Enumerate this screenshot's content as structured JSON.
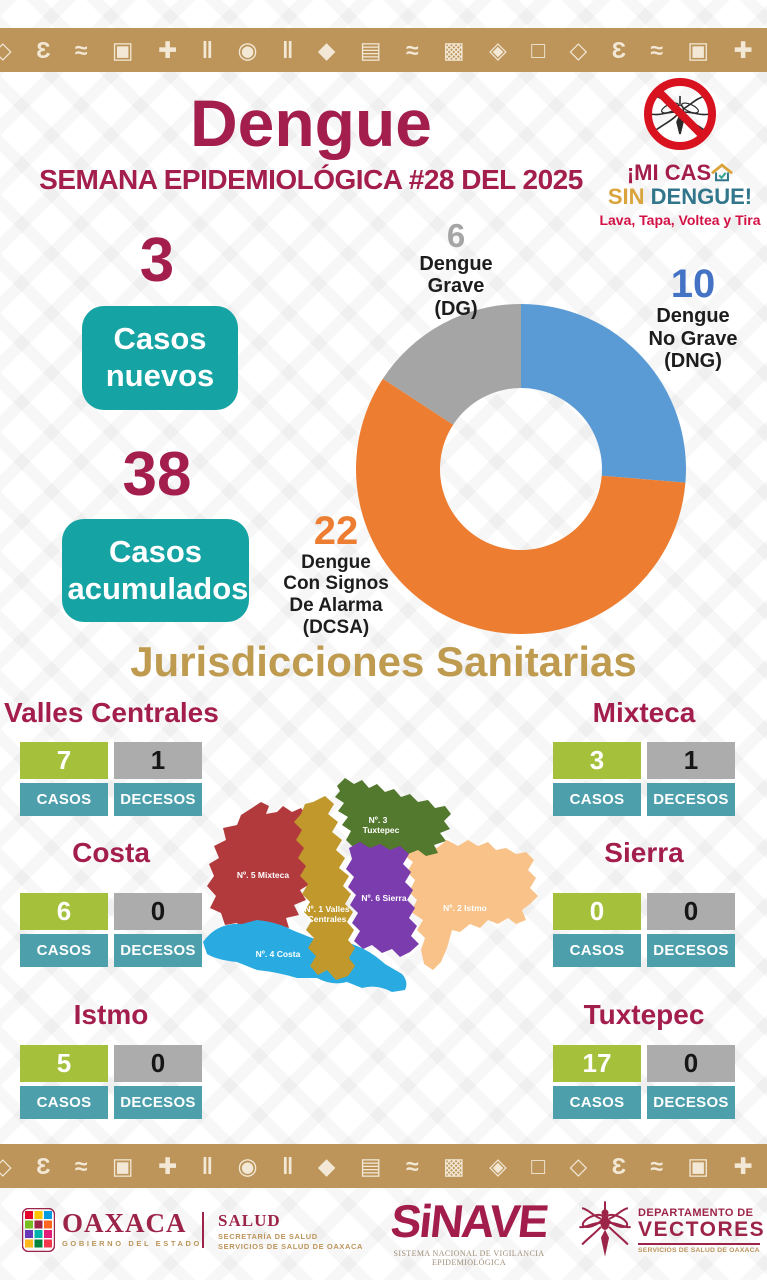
{
  "header": {
    "title": "Dengue",
    "subtitle": "SEMANA EPIDEMIOLÓGICA #28 DEL 2025"
  },
  "campaign": {
    "line1": "¡MI CAS",
    "line2_word1": "SIN",
    "line2_word2": "DENGUE!",
    "tagline": "Lava, Tapa, Voltea y Tira"
  },
  "stats": [
    {
      "value": "3",
      "label": "Casos nuevos"
    },
    {
      "value": "38",
      "label": "Casos acumulados"
    }
  ],
  "chart_data": {
    "type": "pie",
    "donut": true,
    "start_angle_deg": 0,
    "direction": "clockwise",
    "total": 38,
    "slices": [
      {
        "label": "Dengue No Grave (DNG)",
        "value": 10,
        "color": "#5B9BD5"
      },
      {
        "label": "Dengue Con Signos De Alarma (DCSA)",
        "value": 22,
        "color": "#ED7D31"
      },
      {
        "label": "Dengue Grave (DG)",
        "value": 6,
        "color": "#A5A5A5"
      }
    ],
    "callouts": {
      "dg": {
        "value": "6",
        "color": "#A5A5A5",
        "lines": [
          "Dengue",
          "Grave",
          "(DG)"
        ]
      },
      "dng": {
        "value": "10",
        "color": "#4472C4",
        "lines": [
          "Dengue",
          "No Grave",
          "(DNG)"
        ]
      },
      "dcsa": {
        "value": "22",
        "color": "#ED7D31",
        "lines": [
          "Dengue",
          "Con Signos",
          "De Alarma",
          "(DCSA)"
        ]
      }
    }
  },
  "jurisdictions": {
    "heading": "Jurisdicciones Sanitarias",
    "labels": {
      "casos": "CASOS",
      "decesos": "DECESOS"
    },
    "items": [
      {
        "name": "Valles Centrales",
        "casos": "7",
        "decesos": "1"
      },
      {
        "name": "Mixteca",
        "casos": "3",
        "decesos": "1"
      },
      {
        "name": "Costa",
        "casos": "6",
        "decesos": "0"
      },
      {
        "name": "Sierra",
        "casos": "0",
        "decesos": "0"
      },
      {
        "name": "Istmo",
        "casos": "5",
        "decesos": "0"
      },
      {
        "name": "Tuxtepec",
        "casos": "17",
        "decesos": "0"
      }
    ]
  },
  "map": {
    "regions": [
      {
        "name": "Mixteca",
        "color": "#B23A3C",
        "label_lines": [
          "Nº. 5 Mixteca"
        ]
      },
      {
        "name": "Tuxtepec",
        "color": "#53792E",
        "label_lines": [
          "Nº. 3",
          "Tuxtepec"
        ]
      },
      {
        "name": "Valles Centrales",
        "color": "#C0982B",
        "label_lines": [
          "Nº. 1 Valles",
          "Centrales"
        ]
      },
      {
        "name": "Sierra",
        "color": "#7B3DAE",
        "label_lines": [
          "Nº. 6 Sierra"
        ]
      },
      {
        "name": "Istmo",
        "color": "#F9C288",
        "label_lines": [
          "Nº. 2 Istmo"
        ]
      },
      {
        "name": "Costa",
        "color": "#29ABE2",
        "label_lines": [
          "Nº. 4 Costa"
        ]
      }
    ]
  },
  "footer": {
    "oaxaca": {
      "name": "OAXACA",
      "sub": "GOBIERNO DEL ESTADO"
    },
    "salud": {
      "name": "SALUD",
      "line1": "SECRETARÍA DE SALUD",
      "line2": "SERVICIOS DE SALUD DE OAXACA"
    },
    "sinave": {
      "name": "SiNAVE",
      "sub": "SISTEMA NACIONAL DE VIGILANCIA EPIDEMIOLÓGICA"
    },
    "vectores": {
      "line1": "DEPARTAMENTO DE",
      "name": "VECTORES",
      "sub": "SERVICIOS DE SALUD DE OAXACA"
    }
  },
  "decor": {
    "band_color": "#BD9459",
    "border_glyphs": "◇ Ɛ ≈ ▣ ✚ ‖ ◉ ‖ ◆ ▤ ≈ ▩ ◈ □ ",
    "palette": {
      "maroon": "#A41E4D",
      "heading_gold": "#BF9B50",
      "stat_teal": "#16A3A3",
      "table_teal": "#4C9FAB",
      "casos_green": "#A5C13C",
      "decesos_gray": "#ACACAC",
      "tagline_red": "#D31145"
    }
  }
}
